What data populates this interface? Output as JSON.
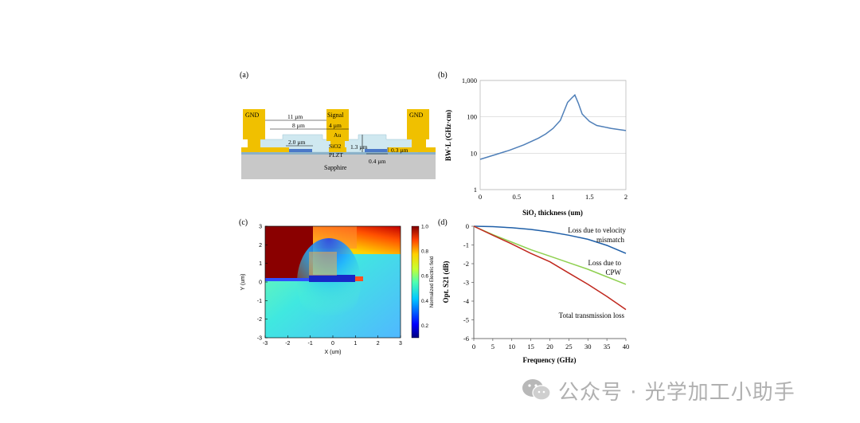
{
  "panels": {
    "a": {
      "label": "(a)",
      "text": {
        "gnd_left": "GND",
        "signal": "Signal",
        "gnd_right": "GND",
        "dim_11": "11 µm",
        "dim_8": "8 µm",
        "dim_4": "4 µm",
        "au": "Au",
        "dim_2": "2.0 µm",
        "dim_1_3": "1.3 µm",
        "dim_0_3": "0.3 µm",
        "sio2": "SiO2",
        "plzt": "PLZT",
        "dim_0_4": "0.4 µm",
        "sapphire": "Sapphire"
      },
      "colors": {
        "gold": "#f0c000",
        "sio2": "#cfe8f0",
        "plzt": "#4a78c8",
        "sapphire": "#c8c8c8"
      }
    },
    "b": {
      "label": "(b)"
    },
    "c": {
      "label": "(c)",
      "colorbar_label": "Normalized Electric field",
      "colorbar_ticks": [
        "0.2",
        "0.4",
        "0.6",
        "0.8",
        "1.0"
      ]
    },
    "d": {
      "label": "(d)",
      "annotations": {
        "velocity_line1": "Loss due to velocity",
        "velocity_line2": "mismatch",
        "cpw_line1": "Loss due to",
        "cpw_line2": "CPW",
        "total": "Total transmission loss"
      }
    }
  },
  "chart_data": [
    {
      "id": "b",
      "type": "line",
      "xlabel": "SiO₂ thickness (um)",
      "ylabel": "BW·L (GHz·cm)",
      "yscale": "log",
      "xlim": [
        0,
        2
      ],
      "ylim": [
        1,
        1000
      ],
      "xticks": [
        "0",
        "0.5",
        "1",
        "1.5",
        "2"
      ],
      "yticks": [
        "1",
        "10",
        "100",
        "1,000"
      ],
      "grid": "horizontal",
      "series": [
        {
          "color": "#4f7fb8",
          "x": [
            0,
            0.2,
            0.4,
            0.6,
            0.8,
            0.9,
            1.0,
            1.1,
            1.2,
            1.25,
            1.3,
            1.35,
            1.4,
            1.5,
            1.6,
            1.8,
            2.0
          ],
          "y": [
            6.8,
            9,
            12,
            17,
            26,
            34,
            48,
            80,
            250,
            320,
            400,
            230,
            120,
            75,
            58,
            48,
            42
          ]
        }
      ]
    },
    {
      "id": "c",
      "type": "heatmap",
      "xlabel": "X (um)",
      "ylabel": "Y (um)",
      "xlim": [
        -3,
        3
      ],
      "ylim": [
        -3,
        3
      ],
      "xticks": [
        "-3",
        "-2",
        "-1",
        "0",
        "1",
        "2",
        "3"
      ],
      "yticks": [
        "-3",
        "-2",
        "-1",
        "0",
        "1",
        "2",
        "3"
      ],
      "colormap": "jet",
      "clim": [
        0.1,
        1.0
      ]
    },
    {
      "id": "d",
      "type": "line",
      "xlabel": "Frequency (GHz)",
      "ylabel": "Opt. S21 (dB)",
      "xlim": [
        0,
        40
      ],
      "ylim": [
        -6,
        0
      ],
      "xticks": [
        "0",
        "5",
        "10",
        "15",
        "20",
        "25",
        "30",
        "35",
        "40"
      ],
      "yticks": [
        "0",
        "-1",
        "-2",
        "-3",
        "-4",
        "-5",
        "-6"
      ],
      "series": [
        {
          "color": "#1f5fa8",
          "x": [
            0,
            5,
            10,
            15,
            20,
            25,
            30,
            35,
            40
          ],
          "y": [
            0,
            -0.02,
            -0.08,
            -0.17,
            -0.3,
            -0.48,
            -0.7,
            -1.02,
            -1.45
          ]
        },
        {
          "color": "#8fd050",
          "x": [
            0,
            5,
            10,
            15,
            20,
            25,
            30,
            35,
            40
          ],
          "y": [
            0,
            -0.45,
            -0.85,
            -1.25,
            -1.6,
            -1.95,
            -2.3,
            -2.7,
            -3.1
          ]
        },
        {
          "color": "#c0281e",
          "x": [
            0,
            5,
            10,
            15,
            20,
            25,
            30,
            35,
            40
          ],
          "y": [
            0,
            -0.48,
            -0.95,
            -1.45,
            -1.9,
            -2.5,
            -3.1,
            -3.75,
            -4.45
          ]
        }
      ]
    }
  ],
  "watermark": {
    "text": "公众号 · 光学加工小助手",
    "icon": "wechat-icon"
  }
}
